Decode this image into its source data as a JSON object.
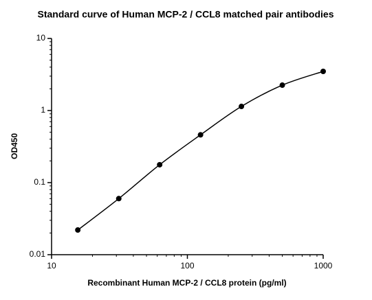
{
  "chart_data": {
    "type": "scatter",
    "title": "Standard curve of Human MCP-2 / CCL8 matched pair antibodies",
    "x_label": "Recombinant Human MCP-2 / CCL8 protein (pg/ml)",
    "y_label": "OD450",
    "x": [
      15.6,
      31.25,
      62.5,
      125,
      250,
      500,
      1000
    ],
    "values": [
      0.022,
      0.06,
      0.177,
      0.46,
      1.14,
      2.25,
      3.49
    ],
    "color": "#000000",
    "curve": true,
    "xscale": "log",
    "yscale": "log",
    "xlim": [
      10,
      1000
    ],
    "ylim": [
      0.01,
      10
    ],
    "xticks": [
      10,
      100,
      1000
    ],
    "yticks": [
      0.01,
      0.1,
      1,
      10
    ]
  }
}
